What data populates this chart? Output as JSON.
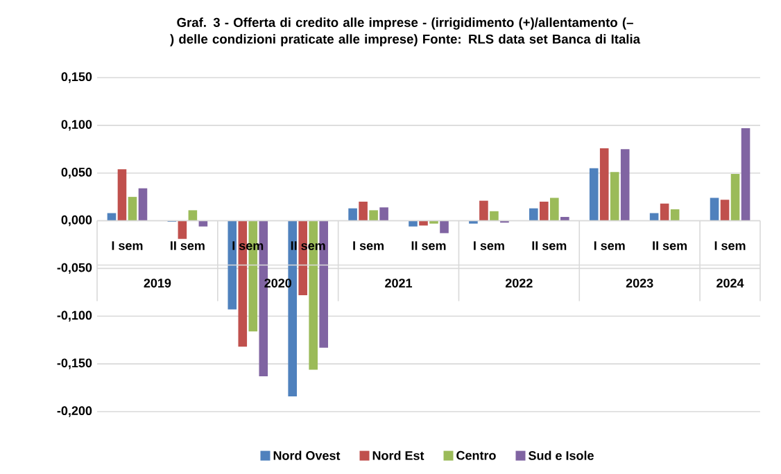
{
  "chart_data": {
    "type": "bar",
    "title": "Graf. 3 - Offerta di credito alle imprese - (irrigidimento (+)/allentamento (–) delle condizioni praticate alle imprese) Fonte: RLS data set Banca di Italia",
    "categories": [
      "I sem",
      "II sem",
      "I sem",
      "II sem",
      "I sem",
      "II sem",
      "I sem",
      "II sem",
      "I sem",
      "II sem",
      "I sem"
    ],
    "annotations": [
      "2019",
      "2020",
      "2021",
      "2022",
      "2023",
      "2024"
    ],
    "series": [
      {
        "name": "Nord Ovest",
        "color": "#4f81bd",
        "values": [
          0.008,
          -0.001,
          -0.093,
          -0.184,
          0.013,
          -0.006,
          -0.003,
          0.013,
          0.055,
          0.008,
          0.024
        ]
      },
      {
        "name": "Nord Est",
        "color": "#c0504d",
        "values": [
          0.054,
          -0.019,
          -0.132,
          -0.078,
          0.02,
          -0.005,
          0.021,
          0.02,
          0.076,
          0.018,
          0.022
        ]
      },
      {
        "name": "Centro",
        "color": "#9bbb59",
        "values": [
          0.025,
          0.011,
          -0.116,
          -0.156,
          0.011,
          -0.003,
          0.01,
          0.024,
          0.051,
          0.012,
          0.049
        ]
      },
      {
        "name": "Sud e Isole",
        "color": "#8064a2",
        "values": [
          0.034,
          -0.006,
          -0.163,
          -0.133,
          0.014,
          -0.013,
          -0.002,
          0.004,
          0.075,
          null,
          0.097
        ]
      }
    ],
    "ylim": [
      -0.2,
      0.15
    ],
    "yticks": [
      {
        "value": -0.2,
        "label": "-0,200"
      },
      {
        "value": -0.15,
        "label": "-0,150"
      },
      {
        "value": -0.1,
        "label": "-0,100"
      },
      {
        "value": -0.05,
        "label": "-0,050"
      },
      {
        "value": 0,
        "label": "0,000"
      },
      {
        "value": 0.05,
        "label": "0,050"
      },
      {
        "value": 0.1,
        "label": "0,100"
      },
      {
        "value": 0.15,
        "label": "0,150"
      }
    ],
    "grid": "y",
    "legend": "bottom"
  }
}
